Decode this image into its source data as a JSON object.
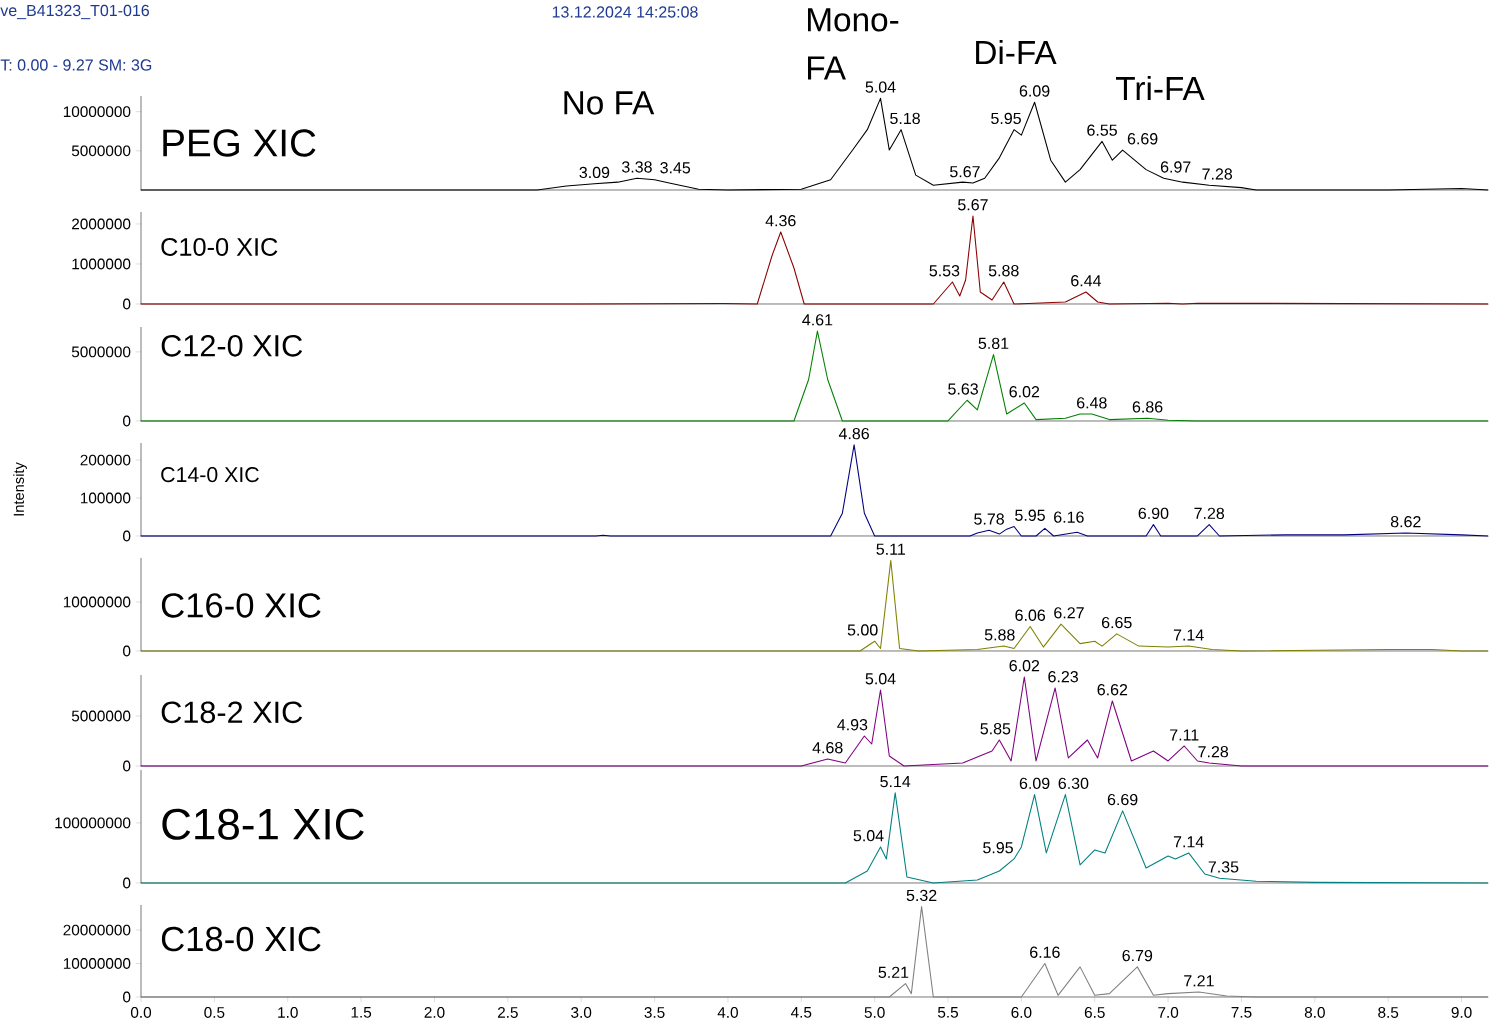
{
  "chart_data": [
    {
      "type": "line",
      "title": "PEG XIC",
      "color": "#000000",
      "xlim": [
        0,
        9.18
      ],
      "ylim": [
        0,
        12000000
      ],
      "yticks": [
        5000000,
        10000000
      ],
      "tick_labels": "y",
      "x": [
        0,
        2.7,
        2.9,
        3.09,
        3.25,
        3.38,
        3.5,
        3.6,
        3.8,
        4.0,
        4.5,
        4.7,
        4.85,
        4.95,
        5.04,
        5.1,
        5.18,
        5.28,
        5.4,
        5.6,
        5.67,
        5.75,
        5.85,
        5.95,
        6.0,
        6.09,
        6.2,
        6.3,
        6.4,
        6.55,
        6.62,
        6.69,
        6.85,
        6.97,
        7.1,
        7.28,
        7.5,
        7.6,
        8.5,
        9.0,
        9.18
      ],
      "values": [
        0,
        0,
        500000,
        800000,
        1000000,
        1500000,
        1300000,
        900000,
        100000,
        0,
        100000,
        1300000,
        5100000,
        7700000,
        11700000,
        5100000,
        7700000,
        1900000,
        600000,
        1000000,
        900000,
        1500000,
        4100000,
        7700000,
        7000000,
        11200000,
        3800000,
        1000000,
        2600000,
        6200000,
        3800000,
        5100000,
        2600000,
        1500000,
        1000000,
        600000,
        300000,
        0,
        0,
        200000,
        0
      ],
      "annotations": [
        "ve_B41323_T01-016",
        "13.12.2024 14:25:08",
        "T: 0.00 - 9.27 SM: 3G",
        "No FA",
        "Mono-FA",
        "Di-FA",
        "Tri-FA",
        {
          "text": "3.09",
          "x": 3.09,
          "y": 800000
        },
        {
          "text": "3.38",
          "x": 3.38,
          "y": 1500000
        },
        {
          "text": "3.45",
          "x": 3.45,
          "y": 1400000
        },
        {
          "text": "5.04",
          "x": 5.04,
          "y": 11700000
        },
        {
          "text": "5.18",
          "x": 5.18,
          "y": 7700000
        },
        {
          "text": "5.67",
          "x": 5.67,
          "y": 900000
        },
        {
          "text": "5.95",
          "x": 5.95,
          "y": 7700000
        },
        {
          "text": "6.09",
          "x": 6.09,
          "y": 11200000
        },
        {
          "text": "6.55",
          "x": 6.55,
          "y": 6200000
        },
        {
          "text": "6.69",
          "x": 6.69,
          "y": 5100000
        },
        {
          "text": "6.97",
          "x": 6.97,
          "y": 1500000
        },
        {
          "text": "7.28",
          "x": 7.28,
          "y": 600000
        }
      ]
    },
    {
      "type": "line",
      "title": "C10-0 XIC",
      "color": "#8b0000",
      "xlim": [
        0,
        9.18
      ],
      "ylim": [
        0,
        2300000
      ],
      "yticks": [
        0,
        1000000,
        2000000
      ],
      "tick_labels": "y",
      "x": [
        0,
        3.0,
        3.97,
        4.2,
        4.3,
        4.36,
        4.45,
        4.52,
        5.0,
        5.4,
        5.53,
        5.58,
        5.62,
        5.67,
        5.72,
        5.8,
        5.88,
        5.95,
        6.3,
        6.44,
        6.52,
        6.6,
        7.0,
        7.1,
        7.2,
        9.18
      ],
      "values": [
        0,
        0,
        10000,
        0,
        1200000,
        1800000,
        900000,
        0,
        0,
        0,
        550000,
        200000,
        600000,
        2200000,
        300000,
        100000,
        550000,
        0,
        50000,
        300000,
        50000,
        0,
        20000,
        0,
        20000,
        0
      ],
      "annotations": [
        {
          "text": "4.36",
          "x": 4.36,
          "y": 1800000
        },
        {
          "text": "5.53",
          "x": 5.53,
          "y": 550000
        },
        {
          "text": "5.67",
          "x": 5.67,
          "y": 2200000
        },
        {
          "text": "5.88",
          "x": 5.88,
          "y": 550000
        },
        {
          "text": "6.44",
          "x": 6.44,
          "y": 300000
        }
      ]
    },
    {
      "type": "line",
      "title": "C12-0 XIC",
      "color": "#008000",
      "xlim": [
        0,
        9.18
      ],
      "ylim": [
        0,
        6800000
      ],
      "yticks": [
        0,
        5000000
      ],
      "tick_labels": "y",
      "x": [
        0,
        4.45,
        4.55,
        4.61,
        4.68,
        4.78,
        5.5,
        5.63,
        5.7,
        5.81,
        5.9,
        6.02,
        6.1,
        6.3,
        6.4,
        6.48,
        6.6,
        6.86,
        7.0,
        7.2,
        9.18
      ],
      "values": [
        0,
        0,
        3000000,
        6500000,
        3000000,
        0,
        0,
        1500000,
        800000,
        4800000,
        500000,
        1300000,
        100000,
        200000,
        500000,
        500000,
        100000,
        200000,
        50000,
        0,
        0
      ],
      "annotations": [
        {
          "text": "4.61",
          "x": 4.61,
          "y": 6500000
        },
        {
          "text": "5.63",
          "x": 5.63,
          "y": 1500000
        },
        {
          "text": "5.81",
          "x": 5.81,
          "y": 4800000
        },
        {
          "text": "6.02",
          "x": 6.02,
          "y": 1300000
        },
        {
          "text": "6.48",
          "x": 6.48,
          "y": 500000
        },
        {
          "text": "6.86",
          "x": 6.86,
          "y": 200000
        }
      ]
    },
    {
      "type": "line",
      "title": "C14-0 XIC",
      "ylabel": "Intensity",
      "color": "#000080",
      "xlim": [
        0,
        9.18
      ],
      "ylim": [
        0,
        245000
      ],
      "yticks": [
        0,
        100000,
        200000
      ],
      "tick_labels": "y",
      "x": [
        0,
        3.1,
        3.15,
        3.2,
        4.7,
        4.78,
        4.86,
        4.93,
        5.0,
        5.65,
        5.7,
        5.78,
        5.85,
        5.9,
        5.95,
        6.0,
        6.1,
        6.16,
        6.22,
        6.38,
        6.45,
        6.85,
        6.9,
        6.95,
        7.2,
        7.28,
        7.35,
        7.8,
        8.2,
        8.62,
        9.0,
        9.18
      ],
      "values": [
        0,
        0,
        2000,
        0,
        0,
        60000,
        240000,
        60000,
        0,
        0,
        8000,
        15000,
        5000,
        18000,
        25000,
        0,
        0,
        20000,
        0,
        10000,
        0,
        0,
        30000,
        0,
        0,
        30000,
        0,
        3000,
        3000,
        8000,
        3000,
        0
      ],
      "annotations": [
        {
          "text": "4.86",
          "x": 4.86,
          "y": 240000
        },
        {
          "text": "5.78",
          "x": 5.78,
          "y": 15000
        },
        {
          "text": "5.95",
          "x": 5.95,
          "y": 25000
        },
        {
          "text": "6.16",
          "x": 6.16,
          "y": 20000
        },
        {
          "text": "6.90",
          "x": 6.9,
          "y": 30000
        },
        {
          "text": "7.28",
          "x": 7.28,
          "y": 30000
        },
        {
          "text": "8.62",
          "x": 8.62,
          "y": 8000
        }
      ]
    },
    {
      "type": "line",
      "title": "C16-0 XIC",
      "color": "#808000",
      "xlim": [
        0,
        9.18
      ],
      "ylim": [
        0,
        19000000
      ],
      "yticks": [
        0,
        10000000
      ],
      "tick_labels": "y",
      "x": [
        0,
        4.9,
        5.0,
        5.04,
        5.11,
        5.17,
        5.3,
        5.7,
        5.88,
        5.95,
        6.06,
        6.15,
        6.27,
        6.4,
        6.5,
        6.55,
        6.65,
        6.8,
        7.0,
        7.14,
        7.3,
        7.5,
        8.5,
        8.8,
        9.0,
        9.18
      ],
      "values": [
        0,
        0,
        2000000,
        500000,
        18500000,
        500000,
        0,
        300000,
        1000000,
        500000,
        5000000,
        800000,
        5500000,
        1500000,
        2000000,
        1000000,
        3500000,
        1000000,
        800000,
        1000000,
        300000,
        0,
        300000,
        300000,
        0,
        0
      ],
      "annotations": [
        {
          "text": "5.00",
          "x": 5.0,
          "y": 2000000
        },
        {
          "text": "5.11",
          "x": 5.11,
          "y": 18500000
        },
        {
          "text": "5.88",
          "x": 5.88,
          "y": 1000000
        },
        {
          "text": "6.06",
          "x": 6.06,
          "y": 5000000
        },
        {
          "text": "6.27",
          "x": 6.27,
          "y": 5500000
        },
        {
          "text": "6.65",
          "x": 6.65,
          "y": 3500000
        },
        {
          "text": "7.14",
          "x": 7.14,
          "y": 1000000
        }
      ]
    },
    {
      "type": "line",
      "title": "C18-2 XIC",
      "color": "#800080",
      "xlim": [
        0,
        9.18
      ],
      "ylim": [
        0,
        9100000
      ],
      "yticks": [
        0,
        5000000
      ],
      "tick_labels": "y",
      "x": [
        0,
        4.5,
        4.68,
        4.8,
        4.93,
        4.98,
        5.04,
        5.1,
        5.2,
        5.6,
        5.8,
        5.85,
        5.93,
        6.02,
        6.1,
        6.23,
        6.32,
        6.45,
        6.52,
        6.62,
        6.75,
        6.9,
        7.0,
        7.11,
        7.2,
        7.28,
        7.5,
        9.18
      ],
      "values": [
        0,
        0,
        700000,
        300000,
        3000000,
        2200000,
        7600000,
        1000000,
        0,
        300000,
        1500000,
        2600000,
        500000,
        8900000,
        500000,
        7800000,
        800000,
        2600000,
        800000,
        6500000,
        500000,
        1500000,
        500000,
        2000000,
        500000,
        300000,
        0,
        0
      ],
      "annotations": [
        {
          "text": "4.68",
          "x": 4.68,
          "y": 700000
        },
        {
          "text": "4.93",
          "x": 4.93,
          "y": 3000000
        },
        {
          "text": "5.04",
          "x": 5.04,
          "y": 7600000
        },
        {
          "text": "5.85",
          "x": 5.85,
          "y": 2600000
        },
        {
          "text": "6.02",
          "x": 6.02,
          "y": 8900000
        },
        {
          "text": "6.23",
          "x": 6.23,
          "y": 7800000
        },
        {
          "text": "6.62",
          "x": 6.62,
          "y": 6500000
        },
        {
          "text": "7.11",
          "x": 7.11,
          "y": 2000000
        },
        {
          "text": "7.28",
          "x": 7.28,
          "y": 300000
        }
      ]
    },
    {
      "type": "line",
      "title": "C18-1 XIC",
      "color": "#008080",
      "xlim": [
        0,
        9.18
      ],
      "ylim": [
        0,
        188000000
      ],
      "yticks": [
        0,
        100000000
      ],
      "tick_labels": "y",
      "x": [
        0,
        4.8,
        4.95,
        5.04,
        5.08,
        5.14,
        5.22,
        5.4,
        5.7,
        5.85,
        5.95,
        6.0,
        6.09,
        6.17,
        6.3,
        6.4,
        6.5,
        6.57,
        6.69,
        6.85,
        7.0,
        7.05,
        7.14,
        7.25,
        7.35,
        7.6,
        8.0,
        9.18
      ],
      "values": [
        0,
        0,
        20000000,
        60000000,
        40000000,
        150000000,
        10000000,
        0,
        5000000,
        20000000,
        40000000,
        60000000,
        147000000,
        50000000,
        147000000,
        30000000,
        55000000,
        50000000,
        120000000,
        25000000,
        45000000,
        40000000,
        50000000,
        15000000,
        8000000,
        3000000,
        1000000,
        0
      ],
      "annotations": [
        {
          "text": "5.04",
          "x": 5.04,
          "y": 60000000
        },
        {
          "text": "5.14",
          "x": 5.14,
          "y": 150000000
        },
        {
          "text": "5.95",
          "x": 5.95,
          "y": 40000000
        },
        {
          "text": "6.09",
          "x": 6.09,
          "y": 147000000
        },
        {
          "text": "6.30",
          "x": 6.3,
          "y": 147000000
        },
        {
          "text": "6.69",
          "x": 6.69,
          "y": 120000000
        },
        {
          "text": "7.14",
          "x": 7.14,
          "y": 50000000
        },
        {
          "text": "7.35",
          "x": 7.35,
          "y": 8000000
        }
      ]
    },
    {
      "type": "line",
      "title": "C18-0 XIC",
      "color": "#808080",
      "xlim": [
        0,
        9.18
      ],
      "ylim": [
        0,
        27500000
      ],
      "yticks": [
        0,
        10000000,
        20000000
      ],
      "xticks": [
        {
          "value": 0,
          "label": "0.0"
        },
        {
          "value": 0.5,
          "label": "0.5"
        },
        {
          "value": 1,
          "label": "1.0"
        },
        {
          "value": 1.5,
          "label": "1.5"
        },
        {
          "value": 2,
          "label": "2.0"
        },
        {
          "value": 2.5,
          "label": "2.5"
        },
        {
          "value": 3,
          "label": "3.0"
        },
        {
          "value": 3.5,
          "label": "3.5"
        },
        {
          "value": 4,
          "label": "4.0"
        },
        {
          "value": 4.5,
          "label": "4.5"
        },
        {
          "value": 5,
          "label": "5.0"
        },
        {
          "value": 5.5,
          "label": "5.5"
        },
        {
          "value": 6,
          "label": "6.0"
        },
        {
          "value": 6.5,
          "label": "6.5"
        },
        {
          "value": 7,
          "label": "7.0"
        },
        {
          "value": 7.5,
          "label": "7.5"
        },
        {
          "value": 8,
          "label": "8.0"
        },
        {
          "value": 8.5,
          "label": "8.5"
        },
        {
          "value": 9,
          "label": "9.0"
        }
      ],
      "x": [
        0,
        5.1,
        5.21,
        5.25,
        5.32,
        5.4,
        6.0,
        6.16,
        6.25,
        6.4,
        6.5,
        6.6,
        6.79,
        6.9,
        7.0,
        7.21,
        7.4,
        7.6,
        9.18
      ],
      "values": [
        0,
        0,
        4000000,
        1000000,
        27000000,
        0,
        0,
        10000000,
        500000,
        9000000,
        500000,
        1000000,
        9000000,
        500000,
        1000000,
        1500000,
        300000,
        0,
        0
      ],
      "annotations": [
        {
          "text": "5.21",
          "x": 5.21,
          "y": 4000000
        },
        {
          "text": "5.32",
          "x": 5.32,
          "y": 27000000
        },
        {
          "text": "6.16",
          "x": 6.16,
          "y": 10000000
        },
        {
          "text": "6.79",
          "x": 6.79,
          "y": 9000000
        },
        {
          "text": "7.21",
          "x": 7.21,
          "y": 1500000
        }
      ]
    }
  ]
}
